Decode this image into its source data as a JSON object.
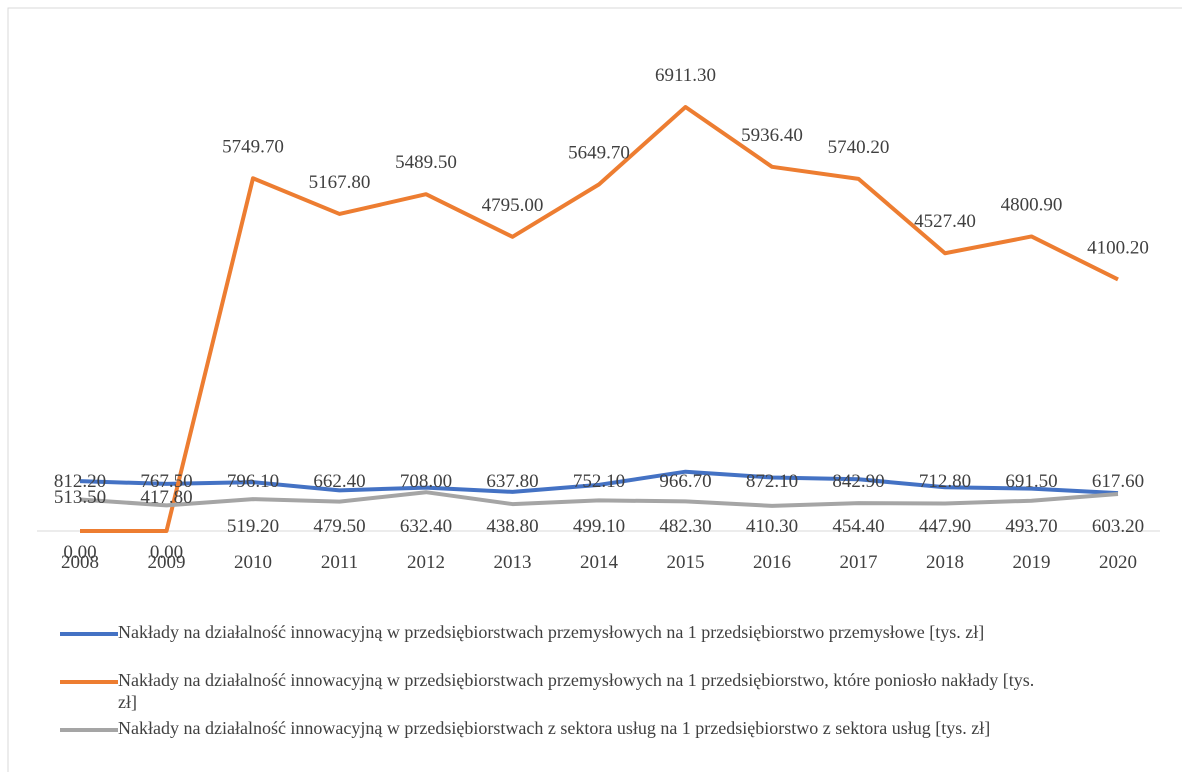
{
  "chart_data": {
    "type": "line",
    "categories": [
      "2008",
      "2009",
      "2010",
      "2011",
      "2012",
      "2013",
      "2014",
      "2015",
      "2016",
      "2017",
      "2018",
      "2019",
      "2020"
    ],
    "series": [
      {
        "name": "Nakłady na działalność innowacyjną w przedsiębiorstwach przemysłowych na 1 przedsiębiorstwo przemysłowe [tys. zł]",
        "color": "#4472c4",
        "values": [
          812.2,
          767.5,
          796.1,
          662.4,
          708.0,
          637.8,
          752.1,
          966.7,
          872.1,
          842.9,
          712.8,
          691.5,
          617.6
        ],
        "value_labels": [
          "812.20",
          "767.50",
          "796.10",
          "662.40",
          "708.00",
          "637.80",
          "752.10",
          "966.70",
          "872.10",
          "842.90",
          "712.80",
          "691.50",
          "617.60"
        ]
      },
      {
        "name": "Nakłady na działalność innowacyjną w przedsiębiorstwach przemysłowych na 1 przedsiębiorstwo, które poniosło nakłady [tys. zł]",
        "color": "#ed7d31",
        "values": [
          0.0,
          0.0,
          5749.7,
          5167.8,
          5489.5,
          4795.0,
          5649.7,
          6911.3,
          5936.4,
          5740.2,
          4527.4,
          4800.9,
          4100.2
        ],
        "value_labels": [
          "0.00",
          "0.00",
          "5749.70",
          "5167.80",
          "5489.50",
          "4795.00",
          "5649.70",
          "6911.30",
          "5936.40",
          "5740.20",
          "4527.40",
          "4800.90",
          "4100.20"
        ]
      },
      {
        "name": "Nakłady na działalność innowacyjną w przedsiębiorstwach z sektora usług na 1 przedsiębiorstwo z sektora usług [tys. zł]",
        "color": "#a5a5a5",
        "values": [
          513.5,
          417.8,
          519.2,
          479.5,
          632.4,
          438.8,
          499.1,
          482.3,
          410.3,
          454.4,
          447.9,
          493.7,
          603.2
        ],
        "value_labels": [
          "513.50",
          "417.80",
          "519.20",
          "479.50",
          "632.40",
          "438.80",
          "499.10",
          "482.30",
          "410.30",
          "454.40",
          "447.90",
          "493.70",
          "603.20"
        ]
      }
    ]
  }
}
